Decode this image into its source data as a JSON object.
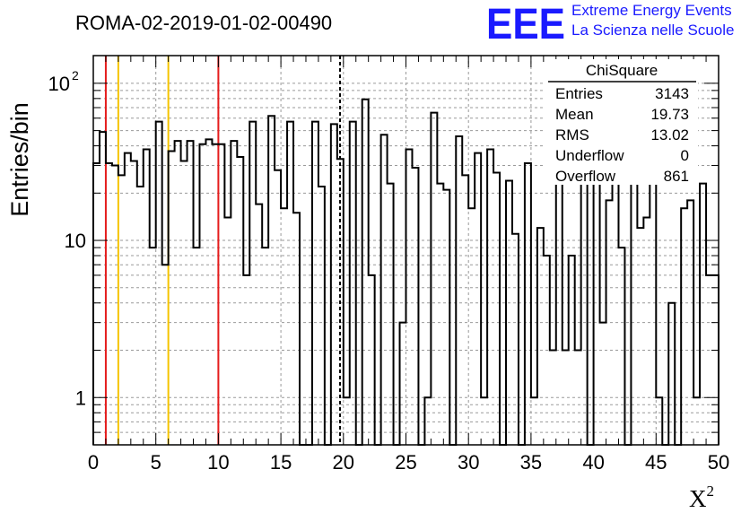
{
  "chart_data": {
    "type": "bar",
    "title": "ROMA-02-2019-01-02-00490",
    "xlabel": "X",
    "xlabel_superscript": "2",
    "ylabel": "Entries/bin",
    "xlim": [
      0,
      50
    ],
    "ylim": [
      0.5,
      150
    ],
    "yscale": "log",
    "grid": true,
    "bin_width": 0.5,
    "x_ticks": [
      "0",
      "5",
      "10",
      "15",
      "20",
      "25",
      "30",
      "35",
      "40",
      "45",
      "50"
    ],
    "y_ticks": [
      "1",
      "10",
      "10"
    ],
    "y_tick_exponent": "2",
    "values": [
      31,
      49,
      31,
      30,
      26,
      36,
      32,
      22,
      38,
      9,
      57,
      7,
      37,
      43,
      32,
      43,
      9,
      41,
      44,
      41,
      41,
      14,
      43,
      34,
      6,
      57,
      17,
      9,
      62,
      28,
      16,
      57,
      15,
      0,
      0,
      57,
      22,
      0,
      55,
      33,
      1,
      57,
      0,
      79,
      6,
      0,
      47,
      23,
      0,
      3,
      38,
      29,
      0,
      1,
      65,
      23,
      21,
      0,
      46,
      26,
      16,
      36,
      1,
      38,
      27,
      0,
      24,
      11,
      0,
      31,
      1,
      12,
      8,
      2,
      55,
      2,
      8,
      2,
      46,
      0,
      31,
      3,
      18,
      24,
      9,
      0,
      50,
      12,
      14,
      37,
      1,
      0,
      4,
      0,
      16,
      18,
      1,
      23,
      6,
      6
    ],
    "vertical_lines": [
      {
        "x": 1,
        "color": "#e51c1c",
        "style": "solid"
      },
      {
        "x": 2,
        "color": "#f5c400",
        "style": "solid"
      },
      {
        "x": 6,
        "color": "#f5c400",
        "style": "solid"
      },
      {
        "x": 10,
        "color": "#e51c1c",
        "style": "solid"
      },
      {
        "x": 19.73,
        "color": "#000000",
        "style": "dashed"
      }
    ],
    "stats_box": {
      "name": "ChiSquare",
      "rows": [
        {
          "label": "Entries",
          "value": "3143"
        },
        {
          "label": "Mean",
          "value": "19.73"
        },
        {
          "label": "RMS",
          "value": "13.02"
        },
        {
          "label": "Underflow",
          "value": "0"
        },
        {
          "label": "Overflow",
          "value": "861"
        }
      ]
    }
  },
  "logo": {
    "mark": "EEE",
    "line1": "Extreme Energy Events",
    "line2": "La Scienza nelle Scuole",
    "color": "#1a1aff"
  }
}
